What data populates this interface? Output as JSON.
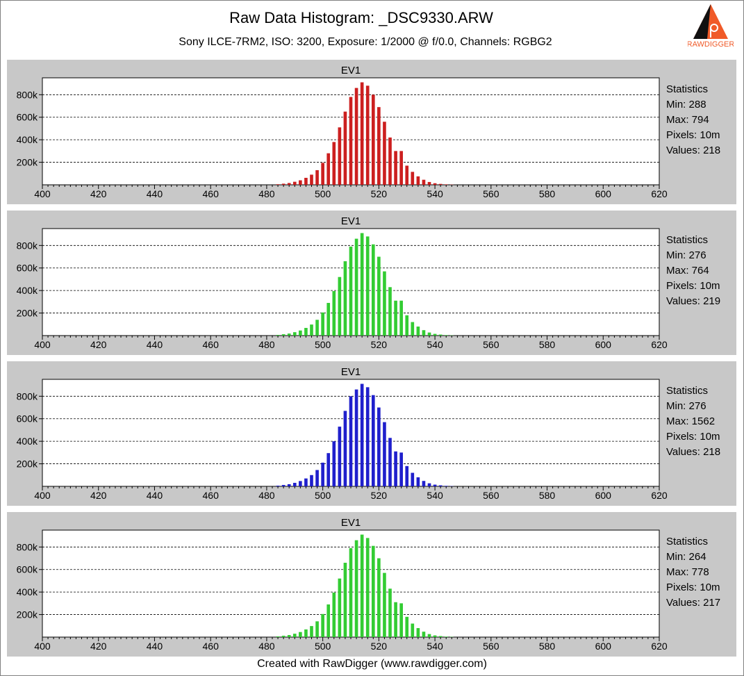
{
  "header": {
    "title": "Raw Data Histogram: _DSC9330.ARW",
    "subtitle": "Sony ILCE-7RM2, ISO: 3200, Exposure: 1/2000 @ f/0.0, Channels: RGBG2",
    "logo_text": "RAWDIGGER"
  },
  "footer": {
    "text": "Created with RawDigger (www.rawdigger.com)"
  },
  "colors": {
    "red": "#cc1f1f",
    "green": "#33cc33",
    "blue": "#1f1fcc",
    "panel_bg": "#c8c8c8",
    "plot_bg": "#ffffff"
  },
  "panels": [
    {
      "channel": "R",
      "color": "#cc1f1f",
      "stats": {
        "heading": "Statistics",
        "min": "Min: 288",
        "max": "Max: 794",
        "pixels": "Pixels: 10m",
        "values": "Values: 218"
      }
    },
    {
      "channel": "G",
      "color": "#33cc33",
      "stats": {
        "heading": "Statistics",
        "min": "Min: 276",
        "max": "Max: 764",
        "pixels": "Pixels: 10m",
        "values": "Values: 219"
      }
    },
    {
      "channel": "B",
      "color": "#1f1fcc",
      "stats": {
        "heading": "Statistics",
        "min": "Min: 276",
        "max": "Max: 1562",
        "pixels": "Pixels: 10m",
        "values": "Values: 218"
      }
    },
    {
      "channel": "G2",
      "color": "#33cc33",
      "stats": {
        "heading": "Statistics",
        "min": "Min: 264",
        "max": "Max: 778",
        "pixels": "Pixels: 10m",
        "values": "Values: 217"
      }
    }
  ],
  "chart_data": [
    {
      "type": "bar",
      "title": "EV1",
      "series": [
        {
          "values_note": ""
        }
      ],
      "x": [
        484,
        486,
        488,
        490,
        492,
        494,
        496,
        498,
        500,
        502,
        504,
        506,
        508,
        510,
        512,
        514,
        516,
        518,
        520,
        522,
        524,
        526,
        528,
        530,
        532,
        534,
        536,
        538,
        540,
        542,
        544,
        546
      ],
      "values": [
        5000,
        10000,
        16000,
        27000,
        40000,
        62000,
        90000,
        130000,
        195000,
        280000,
        380000,
        510000,
        650000,
        780000,
        860000,
        910000,
        880000,
        800000,
        690000,
        560000,
        420000,
        300000,
        300000,
        170000,
        115000,
        75000,
        45000,
        25000,
        14000,
        8000,
        4000,
        2000
      ],
      "xlim": [
        400,
        620
      ],
      "ylim": [
        0,
        950000
      ],
      "yticks": [
        200000,
        400000,
        600000,
        800000
      ],
      "ytick_labels": [
        "200k",
        "400k",
        "600k",
        "800k"
      ],
      "xticks": [
        400,
        420,
        440,
        460,
        480,
        500,
        520,
        540,
        560,
        580,
        600,
        620
      ],
      "xtick_labels": [
        "400",
        "420",
        "440",
        "460",
        "480",
        "500",
        "520",
        "540",
        "560",
        "580",
        "600",
        "620"
      ],
      "grid": "horizontal-dashed"
    },
    {
      "type": "bar",
      "title": "EV1",
      "x": [
        484,
        486,
        488,
        490,
        492,
        494,
        496,
        498,
        500,
        502,
        504,
        506,
        508,
        510,
        512,
        514,
        516,
        518,
        520,
        522,
        524,
        526,
        528,
        530,
        532,
        534,
        536,
        538,
        540,
        542,
        544,
        546
      ],
      "values": [
        6000,
        12000,
        18000,
        30000,
        45000,
        68000,
        98000,
        140000,
        205000,
        290000,
        395000,
        520000,
        660000,
        790000,
        860000,
        910000,
        880000,
        810000,
        700000,
        570000,
        430000,
        310000,
        310000,
        180000,
        120000,
        80000,
        48000,
        27000,
        15000,
        9000,
        4500,
        2000
      ],
      "xlim": [
        400,
        620
      ],
      "ylim": [
        0,
        950000
      ],
      "yticks": [
        200000,
        400000,
        600000,
        800000
      ],
      "ytick_labels": [
        "200k",
        "400k",
        "600k",
        "800k"
      ],
      "xticks": [
        400,
        420,
        440,
        460,
        480,
        500,
        520,
        540,
        560,
        580,
        600,
        620
      ],
      "xtick_labels": [
        "400",
        "420",
        "440",
        "460",
        "480",
        "500",
        "520",
        "540",
        "560",
        "580",
        "600",
        "620"
      ],
      "grid": "horizontal-dashed"
    },
    {
      "type": "bar",
      "title": "EV1",
      "x": [
        484,
        486,
        488,
        490,
        492,
        494,
        496,
        498,
        500,
        502,
        504,
        506,
        508,
        510,
        512,
        514,
        516,
        518,
        520,
        522,
        524,
        526,
        528,
        530,
        532,
        534,
        536,
        538,
        540,
        542,
        544,
        546
      ],
      "values": [
        6000,
        12000,
        19000,
        31000,
        47000,
        70000,
        100000,
        145000,
        210000,
        295000,
        400000,
        530000,
        670000,
        800000,
        860000,
        910000,
        880000,
        810000,
        700000,
        570000,
        430000,
        310000,
        300000,
        180000,
        120000,
        80000,
        48000,
        27000,
        15000,
        9000,
        4500,
        2000
      ],
      "xlim": [
        400,
        620
      ],
      "ylim": [
        0,
        950000
      ],
      "yticks": [
        200000,
        400000,
        600000,
        800000
      ],
      "ytick_labels": [
        "200k",
        "400k",
        "600k",
        "800k"
      ],
      "xticks": [
        400,
        420,
        440,
        460,
        480,
        500,
        520,
        540,
        560,
        580,
        600,
        620
      ],
      "xtick_labels": [
        "400",
        "420",
        "440",
        "460",
        "480",
        "500",
        "520",
        "540",
        "560",
        "580",
        "600",
        "620"
      ],
      "grid": "horizontal-dashed"
    },
    {
      "type": "bar",
      "title": "EV1",
      "x": [
        484,
        486,
        488,
        490,
        492,
        494,
        496,
        498,
        500,
        502,
        504,
        506,
        508,
        510,
        512,
        514,
        516,
        518,
        520,
        522,
        524,
        526,
        528,
        530,
        532,
        534,
        536,
        538,
        540,
        542,
        544,
        546
      ],
      "values": [
        6000,
        12000,
        18000,
        30000,
        45000,
        68000,
        98000,
        140000,
        205000,
        290000,
        395000,
        520000,
        660000,
        790000,
        860000,
        910000,
        880000,
        810000,
        700000,
        570000,
        430000,
        310000,
        300000,
        180000,
        120000,
        80000,
        48000,
        27000,
        15000,
        9000,
        4500,
        2000
      ],
      "xlim": [
        400,
        620
      ],
      "ylim": [
        0,
        950000
      ],
      "yticks": [
        200000,
        400000,
        600000,
        800000
      ],
      "ytick_labels": [
        "200k",
        "400k",
        "600k",
        "800k"
      ],
      "xticks": [
        400,
        420,
        440,
        460,
        480,
        500,
        520,
        540,
        560,
        580,
        600,
        620
      ],
      "xtick_labels": [
        "400",
        "420",
        "440",
        "460",
        "480",
        "500",
        "520",
        "540",
        "560",
        "580",
        "600",
        "620"
      ],
      "grid": "horizontal-dashed"
    }
  ]
}
